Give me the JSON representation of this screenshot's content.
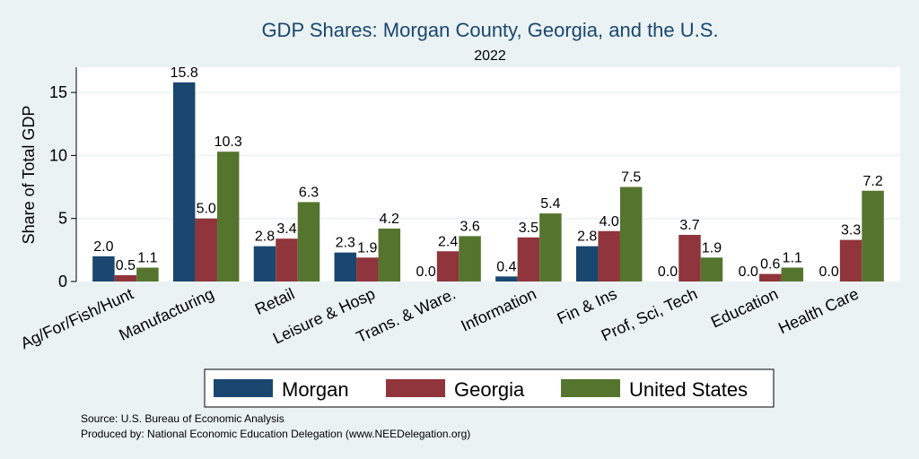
{
  "chart_data": {
    "type": "bar",
    "title": "GDP Shares: Morgan County, Georgia, and the U.S.",
    "subtitle": "2022",
    "ylabel": "Share of Total GDP",
    "ylim": [
      0,
      17
    ],
    "yticks": [
      0,
      5,
      10,
      15
    ],
    "grid": true,
    "legend_position": "bottom",
    "categories": [
      "Ag/For/Fish/Hunt",
      "Manufacturing",
      "Retail",
      "Leisure & Hosp",
      "Trans. & Ware.",
      "Information",
      "Fin & Ins",
      "Prof, Sci, Tech",
      "Education",
      "Health Care"
    ],
    "series": [
      {
        "name": "Morgan",
        "color": "#1a476f",
        "values": [
          2.0,
          15.8,
          2.8,
          2.3,
          0.0,
          0.4,
          2.8,
          0.0,
          0.0,
          0.0
        ],
        "labels": [
          "2.0",
          "15.8",
          "2.8",
          "2.3",
          "0.0",
          "0.4",
          "2.8",
          "0.0",
          "0.0",
          "0.0"
        ]
      },
      {
        "name": "Georgia",
        "color": "#90353b",
        "values": [
          0.5,
          5.0,
          3.4,
          1.9,
          2.4,
          3.5,
          4.0,
          3.7,
          0.6,
          3.3
        ],
        "labels": [
          "0.5",
          "5.0",
          "3.4",
          "1.9",
          "2.4",
          "3.5",
          "4.0",
          "3.7",
          "0.6",
          "3.3"
        ]
      },
      {
        "name": "United States",
        "color": "#55752f",
        "values": [
          1.1,
          10.3,
          6.3,
          4.2,
          3.6,
          5.4,
          7.5,
          1.9,
          1.1,
          7.2
        ],
        "labels": [
          "1.1",
          "10.3",
          "6.3",
          "4.2",
          "3.6",
          "5.4",
          "7.5",
          "1.9",
          "1.1",
          "7.2"
        ]
      }
    ],
    "notes": [
      "Source: U.S. Bureau of Economic Analysis",
      "Produced by: National Economic Education Delegation (www.NEEDelegation.org)"
    ]
  }
}
